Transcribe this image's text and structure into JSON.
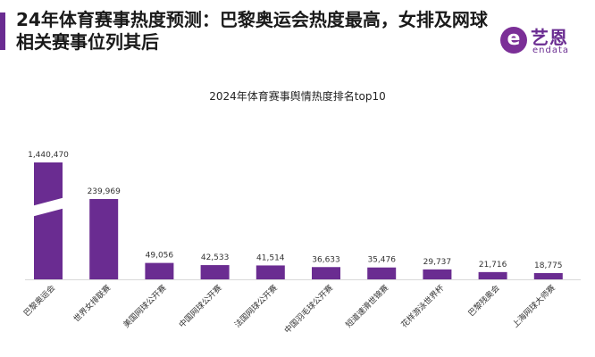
{
  "headline": "24年体育赛事热度预测：巴黎奥运会热度最高，女排及网球相关赛事位列其后",
  "logo": {
    "cn": "艺恩",
    "en": "endata",
    "mark": "e"
  },
  "colors": {
    "accent": "#6a2c91",
    "bar": "#6a2c91"
  },
  "chart_data": {
    "type": "bar",
    "title": "2024年体育赛事舆情热度排名top10",
    "categories": [
      "巴黎奥运会",
      "世界女排联赛",
      "美国网球公开赛",
      "中国网球公开赛",
      "法国网球公开赛",
      "中国羽毛球公开赛",
      "短道速滑世锦赛",
      "花样游泳世界杯",
      "巴黎残奥会",
      "上海网球大师赛"
    ],
    "values": [
      1440470,
      239969,
      49056,
      42533,
      41514,
      36633,
      35476,
      29737,
      21716,
      18775
    ],
    "value_labels": [
      "1,440,470",
      "239,969",
      "49,056",
      "42,533",
      "41,514",
      "36,633",
      "35,476",
      "29,737",
      "21,716",
      "18,775"
    ],
    "axis_break": true,
    "xlabel": "",
    "ylabel": ""
  }
}
